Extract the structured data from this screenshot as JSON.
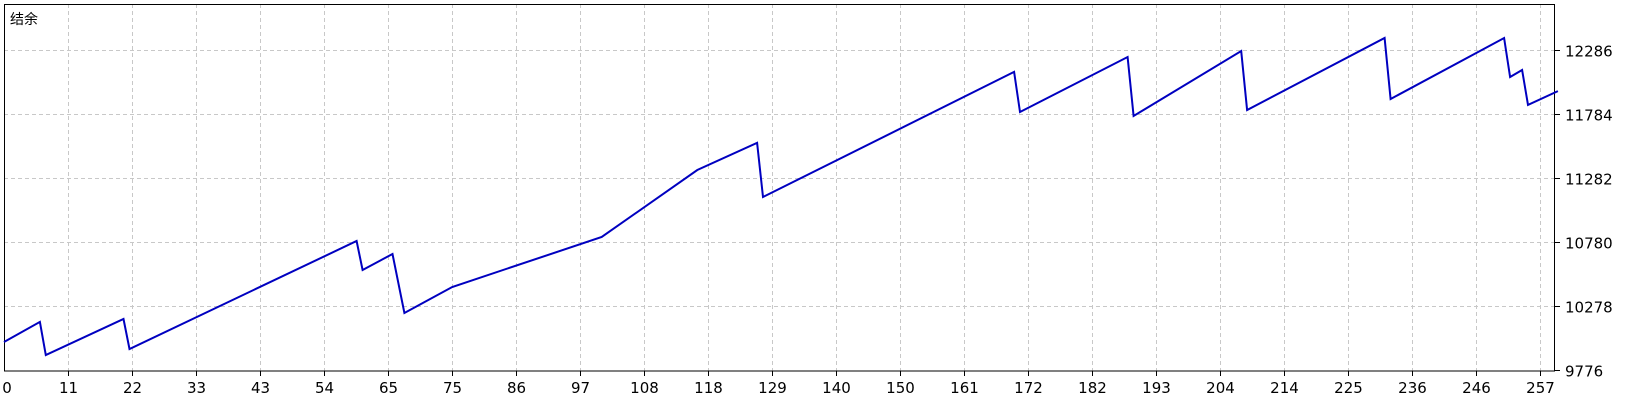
{
  "chart_data": {
    "type": "line",
    "title": "结余",
    "xlabel": "",
    "ylabel": "",
    "xlim": [
      0,
      260
    ],
    "ylim": [
      9776,
      12788
    ],
    "grid": true,
    "line_color": "#0000c0",
    "grid_color": "#c8c8c8",
    "x_ticks": [
      "0",
      "11",
      "22",
      "33",
      "43",
      "54",
      "65",
      "75",
      "86",
      "97",
      "108",
      "118",
      "129",
      "140",
      "150",
      "161",
      "172",
      "182",
      "193",
      "204",
      "214",
      "225",
      "236",
      "246",
      "257"
    ],
    "y_ticks": [
      "12286",
      "11784",
      "11282",
      "10780",
      "10278",
      "9776"
    ],
    "series": [
      {
        "points": [
          [
            0,
            9996
          ],
          [
            6,
            10153
          ],
          [
            7,
            9894
          ],
          [
            20,
            10176
          ],
          [
            21,
            9941
          ],
          [
            59,
            10788
          ],
          [
            60,
            10560
          ],
          [
            65,
            10686
          ],
          [
            67,
            10223
          ],
          [
            75,
            10427
          ],
          [
            100,
            10819
          ],
          [
            116,
            11345
          ],
          [
            126,
            11557
          ],
          [
            127,
            11133
          ],
          [
            169,
            12114
          ],
          [
            170,
            11800
          ],
          [
            188,
            12231
          ],
          [
            189,
            11768
          ],
          [
            207,
            12278
          ],
          [
            208,
            11815
          ],
          [
            231,
            12380
          ],
          [
            232,
            11902
          ],
          [
            251,
            12380
          ],
          [
            252,
            12074
          ],
          [
            254,
            12129
          ],
          [
            255,
            11855
          ],
          [
            260,
            11964
          ]
        ]
      }
    ]
  }
}
